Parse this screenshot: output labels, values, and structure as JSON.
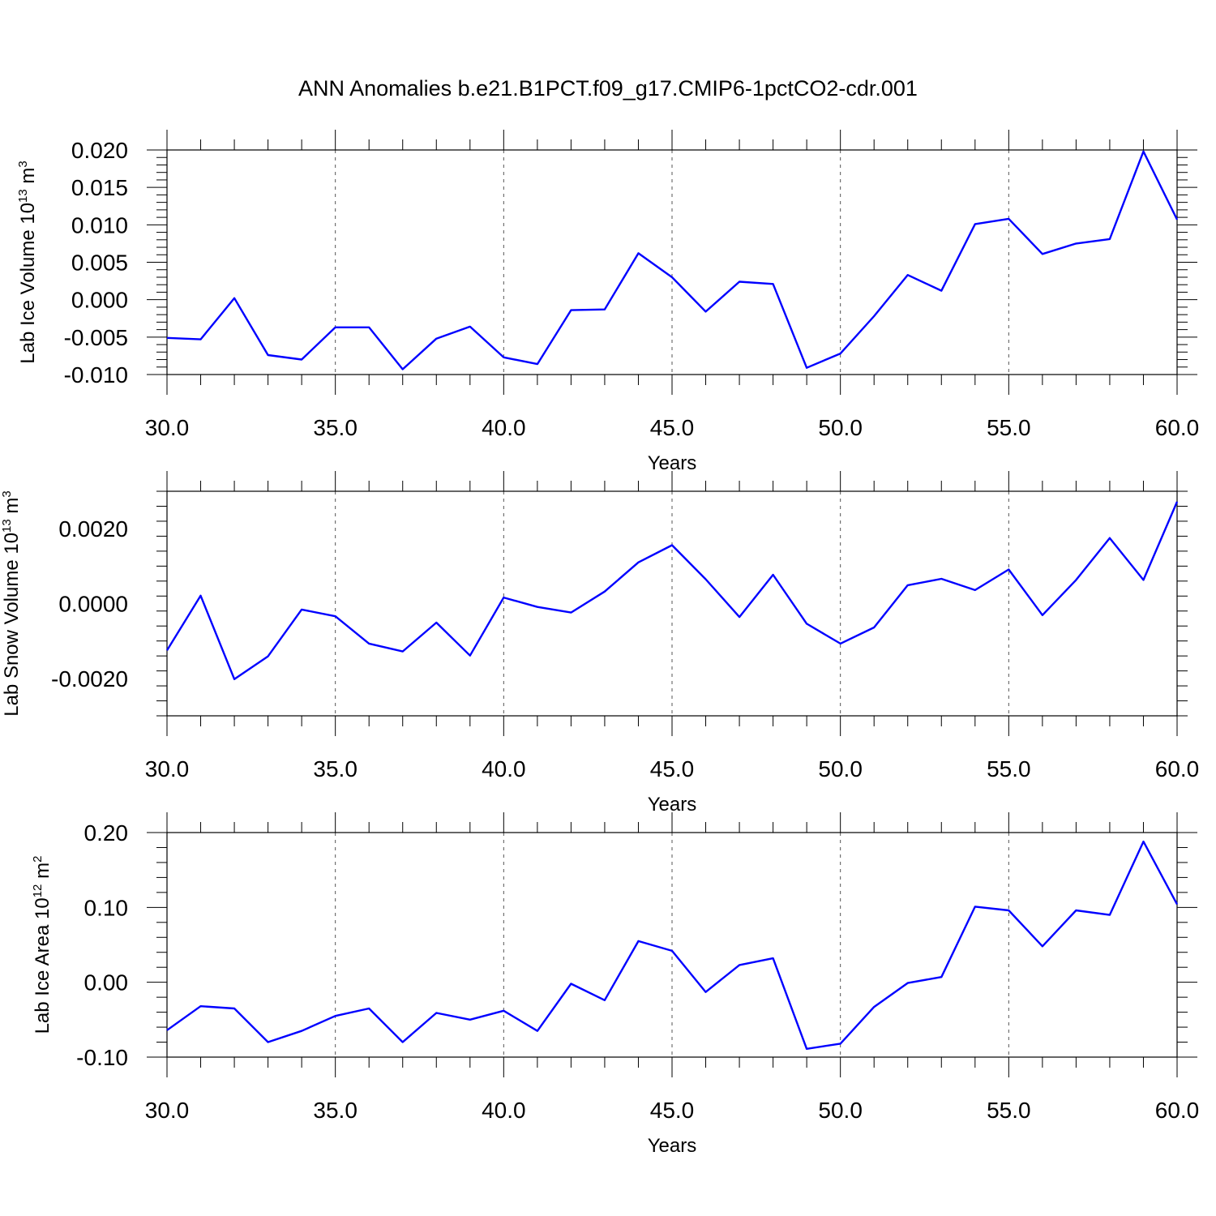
{
  "title": "ANN Anomalies b.e21.B1PCT.f09_g17.CMIP6-1pctCO2-cdr.001",
  "chart_data": [
    {
      "type": "line",
      "xlabel": "Years",
      "ylabel": "Lab Ice Volume 10",
      "ylabel_exp": "13",
      "ylabel_unit": " m",
      "ylabel_unit_exp": "3",
      "xlim": [
        30,
        60
      ],
      "ylim": [
        -0.01,
        0.02
      ],
      "yticks": [
        "-0.010",
        "-0.005",
        "0.000",
        "0.005",
        "0.010",
        "0.015",
        "0.020"
      ],
      "ytick_values": [
        -0.01,
        -0.005,
        0.0,
        0.005,
        0.01,
        0.015,
        0.02
      ],
      "xticks": [
        "30.0",
        "35.0",
        "40.0",
        "45.0",
        "50.0",
        "55.0",
        "60.0"
      ],
      "xtick_values": [
        30,
        35,
        40,
        45,
        50,
        55,
        60
      ],
      "color": "#0000ff",
      "x": [
        30,
        31,
        32,
        33,
        34,
        35,
        36,
        37,
        38,
        39,
        40,
        41,
        42,
        43,
        44,
        45,
        46,
        47,
        48,
        49,
        50,
        51,
        52,
        53,
        54,
        55,
        56,
        57,
        58,
        59,
        60
      ],
      "y": [
        -0.0051,
        -0.0053,
        0.0002,
        -0.0074,
        -0.008,
        -0.0037,
        -0.0037,
        -0.0093,
        -0.0052,
        -0.0036,
        -0.0077,
        -0.0086,
        -0.0014,
        -0.0013,
        0.0062,
        0.003,
        -0.0016,
        0.0024,
        0.0021,
        -0.0091,
        -0.0072,
        -0.0022,
        0.0033,
        0.0012,
        0.0101,
        0.0108,
        0.0061,
        0.0075,
        0.0081,
        0.0198,
        0.0107
      ]
    },
    {
      "type": "line",
      "xlabel": "Years",
      "ylabel": "Lab Snow Volume 10",
      "ylabel_exp": "13",
      "ylabel_unit": " m",
      "ylabel_unit_exp": "3",
      "xlim": [
        30,
        60
      ],
      "ylim": [
        -0.003,
        0.003
      ],
      "yticks": [
        "-0.0020",
        "0.0000",
        "0.0020"
      ],
      "ytick_values": [
        -0.002,
        0.0,
        0.002
      ],
      "xticks": [
        "30.0",
        "35.0",
        "40.0",
        "45.0",
        "50.0",
        "55.0",
        "60.0"
      ],
      "xtick_values": [
        30,
        35,
        40,
        45,
        50,
        55,
        60
      ],
      "color": "#0000ff",
      "x": [
        30,
        31,
        32,
        33,
        34,
        35,
        36,
        37,
        38,
        39,
        40,
        41,
        42,
        43,
        44,
        45,
        46,
        47,
        48,
        49,
        50,
        51,
        52,
        53,
        54,
        55,
        56,
        57,
        58,
        59,
        60
      ],
      "y": [
        -0.00125,
        0.00021,
        -0.00202,
        -0.00141,
        -0.00016,
        -0.00034,
        -0.00107,
        -0.00128,
        -0.00051,
        -0.00139,
        0.00016,
        -9e-05,
        -0.00024,
        0.00032,
        0.0011,
        0.00156,
        0.00065,
        -0.00036,
        0.00077,
        -0.00054,
        -0.00107,
        -0.00064,
        0.00049,
        0.00066,
        0.00036,
        0.00091,
        -0.00031,
        0.00063,
        0.00175,
        0.00063,
        0.00272
      ]
    },
    {
      "type": "line",
      "xlabel": "Years",
      "ylabel": "Lab Ice Area 10",
      "ylabel_exp": "12",
      "ylabel_unit": " m",
      "ylabel_unit_exp": "2",
      "xlim": [
        30,
        60
      ],
      "ylim": [
        -0.1,
        0.2
      ],
      "yticks": [
        "-0.10",
        "0.00",
        "0.10",
        "0.20"
      ],
      "ytick_values": [
        -0.1,
        0.0,
        0.1,
        0.2
      ],
      "xticks": [
        "30.0",
        "35.0",
        "40.0",
        "45.0",
        "50.0",
        "55.0",
        "60.0"
      ],
      "xtick_values": [
        30,
        35,
        40,
        45,
        50,
        55,
        60
      ],
      "color": "#0000ff",
      "x": [
        30,
        31,
        32,
        33,
        34,
        35,
        36,
        37,
        38,
        39,
        40,
        41,
        42,
        43,
        44,
        45,
        46,
        47,
        48,
        49,
        50,
        51,
        52,
        53,
        54,
        55,
        56,
        57,
        58,
        59,
        60
      ],
      "y": [
        -0.064,
        -0.032,
        -0.035,
        -0.08,
        -0.065,
        -0.045,
        -0.035,
        -0.08,
        -0.041,
        -0.05,
        -0.038,
        -0.065,
        -0.002,
        -0.024,
        0.055,
        0.042,
        -0.013,
        0.023,
        0.032,
        -0.089,
        -0.082,
        -0.033,
        -0.001,
        0.007,
        0.101,
        0.096,
        0.048,
        0.096,
        0.09,
        0.188,
        0.104
      ]
    }
  ]
}
